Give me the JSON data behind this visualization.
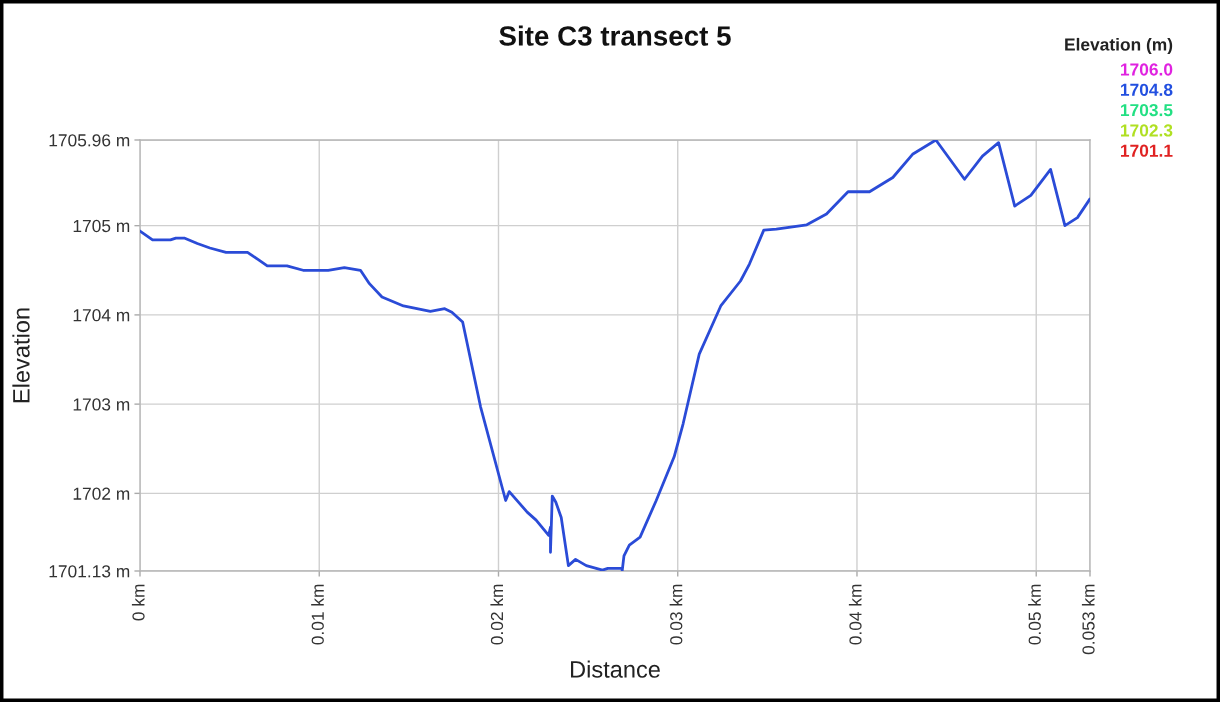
{
  "chart_data": {
    "type": "line",
    "title": "Site C3 transect 5",
    "xlabel": "Distance",
    "ylabel": "Elevation",
    "clabel": "Elevation (m)",
    "annotations": [
      "1706.0",
      "1704.8",
      "1703.5",
      "1702.3",
      "1701.1"
    ],
    "color": "#2a4bd7",
    "x": [
      0,
      0.0007,
      0.0017,
      0.002,
      0.0025,
      0.0032,
      0.0039,
      0.0048,
      0.006,
      0.0066,
      0.0071,
      0.0082,
      0.0091,
      0.0105,
      0.0114,
      0.0123,
      0.0128,
      0.0135,
      0.0147,
      0.0162,
      0.017,
      0.0174,
      0.018,
      0.019,
      0.0204,
      0.0206,
      0.0216,
      0.0221,
      0.0228,
      0.0229,
      0.0229,
      0.023,
      0.0232,
      0.0235,
      0.0239,
      0.0243,
      0.0249,
      0.0258,
      0.0261,
      0.0269,
      0.0269,
      0.027,
      0.0273,
      0.0279,
      0.0288,
      0.0298,
      0.0303,
      0.0312,
      0.0324,
      0.0335,
      0.034,
      0.0348,
      0.0355,
      0.0372,
      0.0383,
      0.0395,
      0.0407,
      0.042,
      0.0431,
      0.0444,
      0.046,
      0.047,
      0.0479,
      0.0488,
      0.0497,
      0.0508,
      0.0516,
      0.0523,
      0.053
    ],
    "values": [
      1704.94,
      1704.84,
      1704.84,
      1704.86,
      1704.86,
      1704.8,
      1704.75,
      1704.7,
      1704.7,
      1704.62,
      1704.55,
      1704.55,
      1704.5,
      1704.5,
      1704.53,
      1704.5,
      1704.35,
      1704.2,
      1704.1,
      1704.04,
      1704.07,
      1704.03,
      1703.92,
      1702.97,
      1701.92,
      1702.02,
      1701.79,
      1701.7,
      1701.53,
      1701.62,
      1701.34,
      1701.97,
      1701.9,
      1701.73,
      1701.19,
      1701.26,
      1701.19,
      1701.14,
      1701.16,
      1701.16,
      1701.13,
      1701.3,
      1701.42,
      1701.51,
      1701.92,
      1702.41,
      1702.78,
      1703.56,
      1704.1,
      1704.38,
      1704.57,
      1704.95,
      1704.96,
      1705.01,
      1705.13,
      1705.38,
      1705.38,
      1705.54,
      1705.8,
      1705.96,
      1705.52,
      1705.78,
      1705.93,
      1705.22,
      1705.34,
      1705.63,
      1705.0,
      1705.09,
      1705.3
    ],
    "xlim": [
      0,
      0.053
    ],
    "xticks": [
      {
        "value": 0,
        "label": "0 km"
      },
      {
        "value": 0.01,
        "label": "0.01 km"
      },
      {
        "value": 0.02,
        "label": "0.02 km"
      },
      {
        "value": 0.03,
        "label": "0.03 km"
      },
      {
        "value": 0.04,
        "label": "0.04 km"
      },
      {
        "value": 0.05,
        "label": "0.05 km"
      },
      {
        "value": 0.053,
        "label": "0.053 km"
      }
    ],
    "ylim": [
      1701.13,
      1705.96
    ],
    "yticks": [
      {
        "value": 1701.13,
        "label": "1701.13 m"
      },
      {
        "value": 1702,
        "label": "1702 m"
      },
      {
        "value": 1703,
        "label": "1703 m"
      },
      {
        "value": 1704,
        "label": "1704 m"
      },
      {
        "value": 1705,
        "label": "1705 m"
      },
      {
        "value": 1705.96,
        "label": "1705.96 m"
      }
    ],
    "grid": true
  }
}
